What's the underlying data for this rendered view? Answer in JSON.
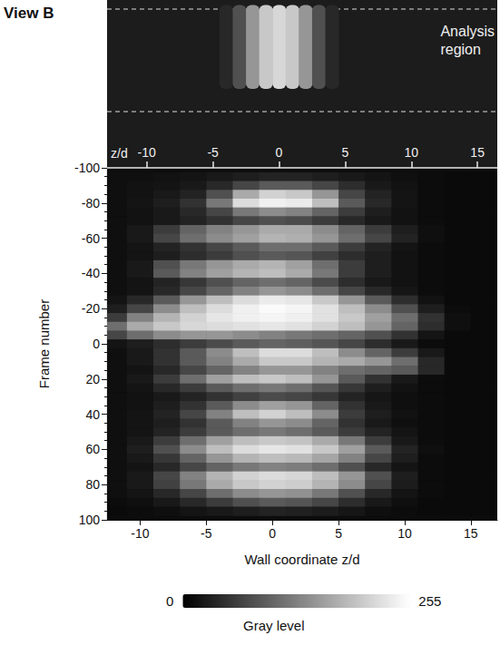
{
  "chart_data": [
    {
      "type": "image",
      "title": "View B",
      "annotation": "Analysis region",
      "xlabel": "z/d",
      "xlim": [
        -13,
        16.5
      ],
      "xticks": [
        -10,
        -5,
        0,
        5,
        10,
        15
      ],
      "spot": {
        "z": [
          -4,
          -3,
          -2,
          -1,
          0,
          1,
          2,
          3,
          4
        ],
        "gray_level": [
          40,
          80,
          150,
          200,
          215,
          200,
          150,
          80,
          40
        ]
      }
    },
    {
      "type": "heatmap",
      "xlabel": "Wall coordinate z/d",
      "ylabel": "Frame number",
      "xlim": [
        -12.5,
        17
      ],
      "xticks": [
        -10,
        -5,
        0,
        5,
        10,
        15
      ],
      "ylim": [
        -100,
        100
      ],
      "yticks": [
        -100,
        -80,
        -60,
        -40,
        -20,
        0,
        20,
        40,
        60,
        80,
        100
      ],
      "x": [
        -12,
        -10,
        -8,
        -6,
        -4,
        -2,
        0,
        2,
        4,
        6,
        8,
        10,
        12,
        14,
        16
      ],
      "y": [
        -95,
        -90,
        -85,
        -80,
        -75,
        -70,
        -65,
        -60,
        -55,
        -50,
        -45,
        -40,
        -35,
        -30,
        -25,
        -20,
        -15,
        -10,
        -5,
        0,
        5,
        10,
        15,
        20,
        25,
        30,
        35,
        40,
        45,
        50,
        55,
        60,
        65,
        70,
        75,
        80,
        85,
        90,
        95
      ],
      "cells": [
        [
          15,
          15,
          18,
          20,
          25,
          30,
          35,
          35,
          30,
          25,
          20,
          15,
          12,
          10,
          10
        ],
        [
          15,
          18,
          20,
          25,
          40,
          70,
          90,
          90,
          70,
          45,
          25,
          18,
          12,
          10,
          10
        ],
        [
          15,
          18,
          25,
          35,
          80,
          170,
          210,
          200,
          150,
          70,
          35,
          20,
          12,
          10,
          10
        ],
        [
          15,
          20,
          30,
          50,
          120,
          220,
          240,
          235,
          190,
          90,
          40,
          20,
          12,
          10,
          10
        ],
        [
          15,
          18,
          25,
          40,
          70,
          120,
          140,
          130,
          100,
          60,
          30,
          18,
          12,
          10,
          10
        ],
        [
          15,
          18,
          25,
          35,
          50,
          70,
          80,
          75,
          60,
          40,
          25,
          18,
          12,
          10,
          10
        ],
        [
          15,
          25,
          60,
          100,
          130,
          150,
          170,
          170,
          140,
          100,
          60,
          30,
          15,
          10,
          10
        ],
        [
          15,
          25,
          70,
          110,
          140,
          160,
          180,
          175,
          150,
          110,
          70,
          35,
          15,
          10,
          10
        ],
        [
          15,
          20,
          35,
          50,
          70,
          90,
          110,
          110,
          90,
          60,
          35,
          20,
          12,
          10,
          10
        ],
        [
          15,
          20,
          30,
          45,
          60,
          80,
          90,
          85,
          65,
          45,
          30,
          18,
          12,
          10,
          10
        ],
        [
          15,
          25,
          80,
          120,
          150,
          170,
          180,
          160,
          110,
          60,
          30,
          18,
          12,
          10,
          10
        ],
        [
          15,
          25,
          90,
          130,
          160,
          180,
          190,
          170,
          120,
          60,
          30,
          18,
          12,
          10,
          10
        ],
        [
          15,
          20,
          35,
          55,
          80,
          100,
          110,
          100,
          75,
          45,
          25,
          18,
          12,
          10,
          10
        ],
        [
          15,
          20,
          40,
          70,
          100,
          130,
          150,
          140,
          110,
          70,
          40,
          22,
          12,
          10,
          10
        ],
        [
          20,
          40,
          90,
          150,
          190,
          220,
          235,
          230,
          200,
          150,
          90,
          45,
          18,
          10,
          10
        ],
        [
          30,
          70,
          140,
          190,
          220,
          240,
          250,
          245,
          225,
          190,
          140,
          80,
          30,
          12,
          10
        ],
        [
          60,
          130,
          180,
          210,
          230,
          240,
          245,
          240,
          225,
          200,
          160,
          110,
          50,
          15,
          10
        ],
        [
          110,
          170,
          200,
          215,
          220,
          225,
          230,
          225,
          210,
          190,
          150,
          100,
          45,
          15,
          10
        ],
        [
          70,
          110,
          140,
          150,
          150,
          140,
          130,
          120,
          110,
          100,
          80,
          50,
          20,
          10,
          10
        ],
        [
          20,
          30,
          45,
          60,
          75,
          90,
          100,
          95,
          85,
          70,
          45,
          25,
          12,
          10,
          10
        ],
        [
          15,
          25,
          50,
          90,
          140,
          190,
          220,
          220,
          190,
          140,
          100,
          60,
          25,
          10,
          10
        ],
        [
          15,
          25,
          50,
          90,
          130,
          170,
          200,
          200,
          180,
          170,
          150,
          110,
          40,
          10,
          10
        ],
        [
          15,
          20,
          40,
          70,
          100,
          130,
          150,
          150,
          130,
          110,
          100,
          90,
          40,
          10,
          10
        ],
        [
          15,
          25,
          60,
          110,
          160,
          190,
          200,
          190,
          150,
          90,
          50,
          25,
          12,
          10,
          10
        ],
        [
          15,
          20,
          40,
          60,
          90,
          110,
          120,
          110,
          85,
          55,
          30,
          18,
          12,
          10,
          10
        ],
        [
          15,
          18,
          25,
          35,
          50,
          65,
          75,
          70,
          55,
          35,
          22,
          15,
          12,
          10,
          10
        ],
        [
          15,
          18,
          30,
          50,
          90,
          140,
          160,
          150,
          100,
          50,
          25,
          15,
          12,
          10,
          10
        ],
        [
          15,
          20,
          35,
          70,
          130,
          190,
          210,
          190,
          140,
          60,
          30,
          18,
          12,
          10,
          10
        ],
        [
          15,
          20,
          30,
          50,
          90,
          130,
          150,
          140,
          100,
          50,
          25,
          15,
          12,
          10,
          10
        ],
        [
          15,
          20,
          35,
          60,
          90,
          110,
          120,
          110,
          90,
          60,
          35,
          20,
          12,
          10,
          10
        ],
        [
          15,
          25,
          60,
          110,
          160,
          190,
          200,
          195,
          170,
          120,
          60,
          25,
          12,
          10,
          10
        ],
        [
          15,
          30,
          80,
          140,
          190,
          220,
          230,
          225,
          200,
          160,
          90,
          35,
          15,
          10,
          10
        ],
        [
          15,
          25,
          55,
          100,
          150,
          180,
          190,
          185,
          165,
          130,
          70,
          30,
          12,
          10,
          10
        ],
        [
          15,
          20,
          40,
          70,
          100,
          120,
          130,
          125,
          110,
          80,
          40,
          20,
          12,
          10,
          10
        ],
        [
          15,
          25,
          70,
          130,
          180,
          210,
          220,
          215,
          190,
          150,
          80,
          30,
          12,
          10,
          10
        ],
        [
          15,
          25,
          65,
          120,
          170,
          200,
          210,
          205,
          180,
          140,
          70,
          28,
          12,
          10,
          10
        ],
        [
          15,
          20,
          40,
          70,
          110,
          140,
          150,
          145,
          120,
          80,
          40,
          20,
          12,
          10,
          10
        ],
        [
          12,
          15,
          25,
          40,
          60,
          80,
          90,
          85,
          70,
          45,
          25,
          15,
          10,
          10,
          10
        ],
        [
          10,
          12,
          15,
          20,
          25,
          30,
          35,
          32,
          28,
          22,
          15,
          12,
          10,
          10,
          10
        ]
      ],
      "colorbar": {
        "label": "Gray level",
        "range": [
          0,
          255
        ],
        "ticks": [
          0,
          255
        ]
      }
    }
  ]
}
